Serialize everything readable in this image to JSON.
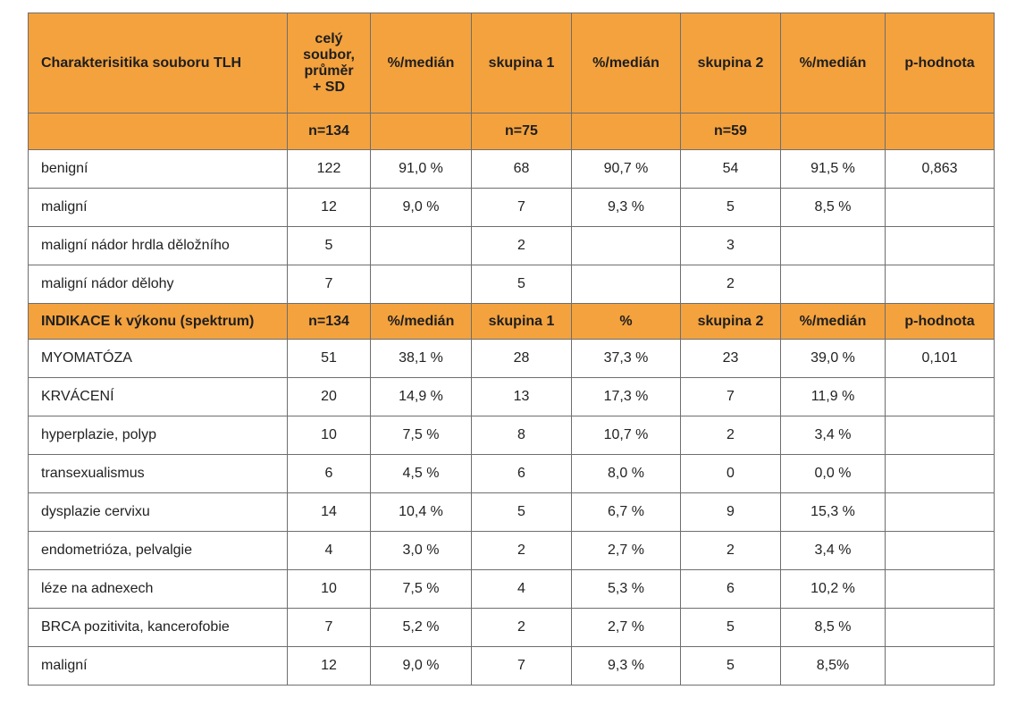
{
  "header": {
    "cells": [
      "Charakterisitika souboru TLH",
      "celý\nsoubor,\nprůměr\n+ SD",
      "%/medián",
      "skupina 1",
      "%/medián",
      "skupina 2",
      "%/medián",
      "p-hodnota"
    ],
    "counts": [
      "",
      "n=134",
      "",
      "n=75",
      "",
      "n=59",
      "",
      ""
    ]
  },
  "section1_rows": [
    [
      "benigní",
      "122",
      "91,0 %",
      "68",
      "90,7 %",
      "54",
      "91,5 %",
      "0,863"
    ],
    [
      "maligní",
      "12",
      "9,0 %",
      "7",
      "9,3 %",
      "5",
      "8,5 %",
      ""
    ],
    [
      "maligní nádor hrdla děložního",
      "5",
      "",
      "2",
      "",
      "3",
      "",
      ""
    ],
    [
      "maligní nádor dělohy",
      "7",
      "",
      "5",
      "",
      "2",
      "",
      ""
    ]
  ],
  "section2_header": [
    "INDIKACE k výkonu (spektrum)",
    "n=134",
    "%/medián",
    "skupina 1",
    "%",
    "skupina 2",
    "%/medián",
    "p-hodnota"
  ],
  "section2_rows": [
    [
      "MYOMATÓZA",
      "51",
      "38,1 %",
      "28",
      "37,3 %",
      "23",
      "39,0 %",
      "0,101"
    ],
    [
      "KRVÁCENÍ",
      "20",
      "14,9 %",
      "13",
      "17,3 %",
      "7",
      "11,9 %",
      ""
    ],
    [
      "hyperplazie, polyp",
      "10",
      "7,5 %",
      "8",
      "10,7 %",
      "2",
      "3,4 %",
      ""
    ],
    [
      "transexualismus",
      "6",
      "4,5 %",
      "6",
      "8,0 %",
      "0",
      "0,0 %",
      ""
    ],
    [
      "dysplazie cervixu",
      "14",
      "10,4 %",
      "5",
      "6,7 %",
      "9",
      "15,3 %",
      ""
    ],
    [
      "endometrióza, pelvalgie",
      "4",
      "3,0 %",
      "2",
      "2,7 %",
      "2",
      "3,4 %",
      ""
    ],
    [
      "léze na adnexech",
      "10",
      "7,5 %",
      "4",
      "5,3 %",
      "6",
      "10,2 %",
      ""
    ],
    [
      "BRCA pozitivita, kancerofobie",
      "7",
      "5,2 %",
      "2",
      "2,7 %",
      "5",
      "8,5 %",
      ""
    ],
    [
      "maligní",
      "12",
      "9,0 %",
      "7",
      "9,3 %",
      "5",
      "8,5%",
      ""
    ]
  ],
  "colors": {
    "header_fill": "#f4a23e",
    "border": "#6e6e6e"
  }
}
